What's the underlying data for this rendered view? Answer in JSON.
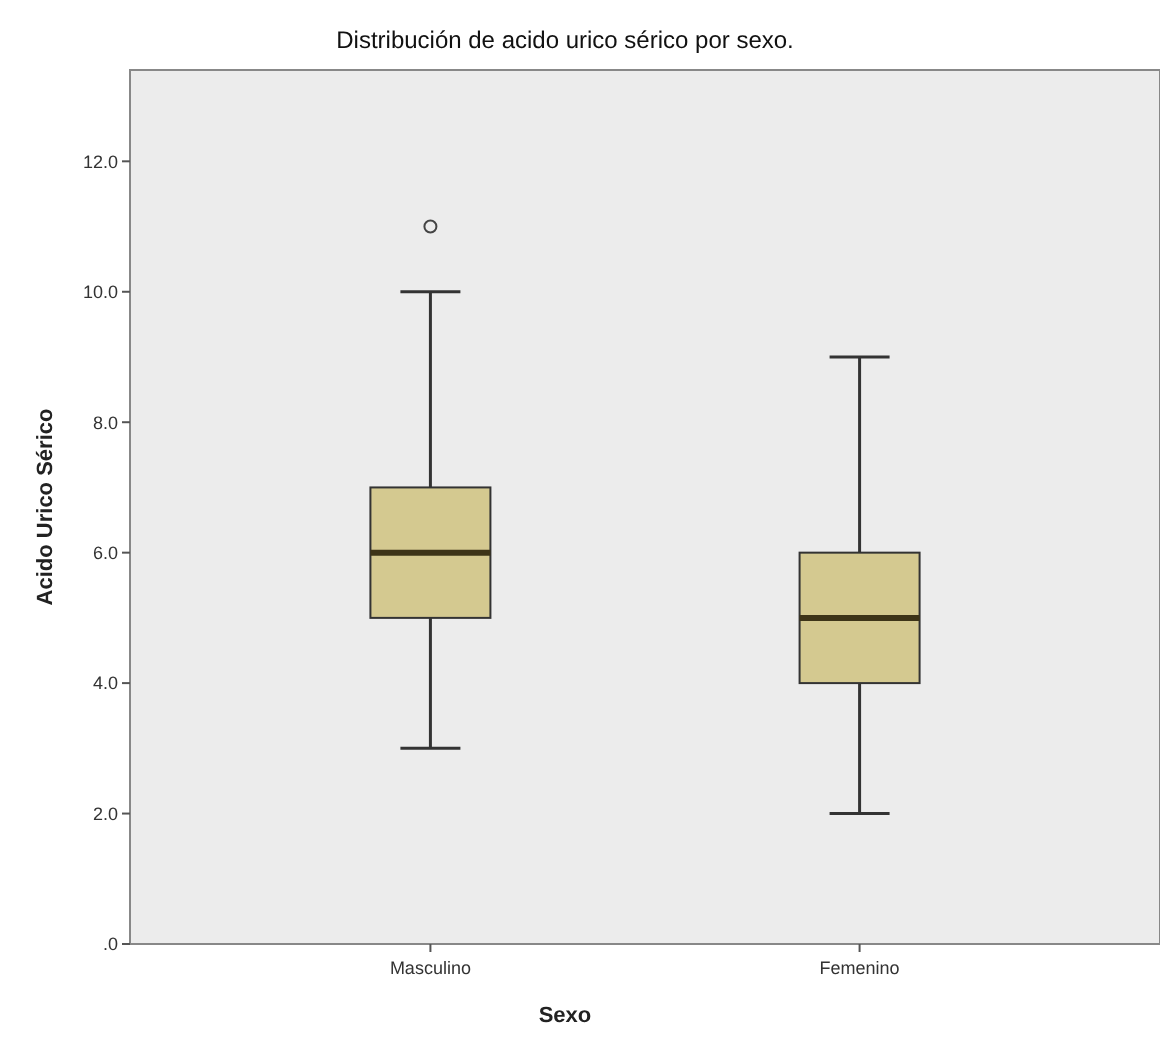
{
  "chart_data": {
    "type": "box",
    "title": "Distribución de acido urico sérico por sexo.",
    "xlabel": "Sexo",
    "ylabel": "Acido Urico Sérico",
    "categories": [
      "Masculino",
      "Femenino"
    ],
    "boxes": [
      {
        "low": 3,
        "q1": 5,
        "median": 6,
        "q3": 7,
        "high": 10,
        "outliers": [
          11
        ]
      },
      {
        "low": 2,
        "q1": 4,
        "median": 5,
        "q3": 6,
        "high": 9
      }
    ],
    "color": "#d4c990",
    "ylim": [
      0,
      13.4
    ],
    "yticks": [
      {
        "value": 0,
        "label": ".0"
      },
      {
        "value": 2,
        "label": "2.0"
      },
      {
        "value": 4,
        "label": "4.0"
      },
      {
        "value": 6,
        "label": "6.0"
      },
      {
        "value": 8,
        "label": "8.0"
      },
      {
        "value": 10,
        "label": "10.0"
      },
      {
        "value": 12,
        "label": "12.0"
      }
    ],
    "marker": "circle",
    "grid": false
  }
}
